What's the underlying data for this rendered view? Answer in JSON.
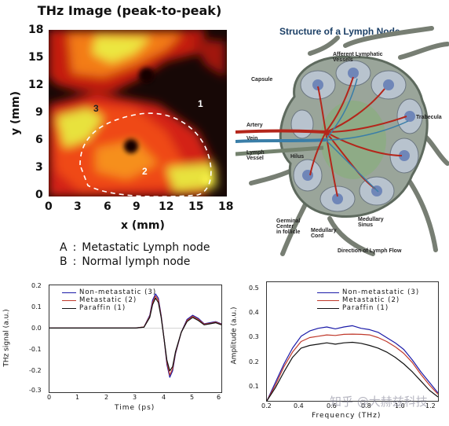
{
  "thz_image": {
    "title": "THz Image (peak-to-peak)",
    "xlabel": "x (mm)",
    "ylabel": "y (mm)",
    "xticks": [
      "0",
      "3",
      "6",
      "9",
      "12",
      "15",
      "18"
    ],
    "yticks": [
      "18",
      "15",
      "12",
      "9",
      "6",
      "3",
      "0"
    ],
    "region_labels": [
      "1",
      "2",
      "3"
    ]
  },
  "legend_ab": {
    "a": "A : Metastatic Lymph node",
    "b": "B : Normal lymph node"
  },
  "lymph_node": {
    "title": "Structure of a Lymph Node",
    "labels": {
      "afferent": "Afferent Lymphatic\nVessels",
      "capsule": "Capsule",
      "trabecula": "Trabecula",
      "artery": "Artery",
      "vein": "Vein",
      "lymph_vessel": "Lymph\nVessel",
      "hilus": "Hilus",
      "germinal": "Germinal\nCenter\nin follicle",
      "medullary_cord": "Medullary\nCord",
      "medullary_sinus": "Medullary\nSinus",
      "direction": "Direction of Lymph Flow"
    }
  },
  "chart_data": [
    {
      "type": "line",
      "xlabel": "Time (ps)",
      "ylabel": "THz signal (a.u.)",
      "xlim": [
        0,
        6
      ],
      "ylim": [
        -0.3,
        0.2
      ],
      "xticks": [
        "0",
        "1",
        "2",
        "3",
        "4",
        "5",
        "6"
      ],
      "yticks": [
        "0.2",
        "0.1",
        "0.0",
        "-0.1",
        "-0.2",
        "-0.3"
      ],
      "series": [
        {
          "name": "Non-metastatic (3)",
          "color": "#1a1aa8",
          "x": [
            0,
            1,
            2,
            3,
            3.3,
            3.5,
            3.6,
            3.7,
            3.8,
            3.9,
            4.0,
            4.1,
            4.2,
            4.3,
            4.4,
            4.6,
            4.8,
            5.0,
            5.2,
            5.4,
            5.6,
            5.8,
            6.0
          ],
          "y": [
            0,
            0,
            0,
            0,
            0.005,
            0.06,
            0.13,
            0.16,
            0.14,
            0.06,
            -0.05,
            -0.17,
            -0.23,
            -0.2,
            -0.12,
            -0.02,
            0.04,
            0.06,
            0.045,
            0.02,
            0.025,
            0.03,
            0.02
          ]
        },
        {
          "name": "Metastatic (2)",
          "color": "#c0392b",
          "x": [
            0,
            1,
            2,
            3,
            3.3,
            3.5,
            3.6,
            3.7,
            3.8,
            3.9,
            4.0,
            4.1,
            4.2,
            4.3,
            4.4,
            4.6,
            4.8,
            5.0,
            5.2,
            5.4,
            5.6,
            5.8,
            6.0
          ],
          "y": [
            0,
            0,
            0,
            0,
            0.005,
            0.055,
            0.12,
            0.15,
            0.13,
            0.055,
            -0.05,
            -0.16,
            -0.22,
            -0.19,
            -0.115,
            -0.02,
            0.035,
            0.055,
            0.04,
            0.018,
            0.022,
            0.028,
            0.018
          ]
        },
        {
          "name": "Paraffin (1)",
          "color": "#111111",
          "x": [
            0,
            1,
            2,
            3,
            3.3,
            3.5,
            3.6,
            3.7,
            3.8,
            3.9,
            4.0,
            4.1,
            4.2,
            4.3,
            4.4,
            4.6,
            4.8,
            5.0,
            5.2,
            5.4,
            5.6,
            5.8,
            6.0
          ],
          "y": [
            0,
            0,
            0,
            0,
            0.004,
            0.05,
            0.11,
            0.14,
            0.12,
            0.05,
            -0.05,
            -0.15,
            -0.2,
            -0.18,
            -0.11,
            -0.02,
            0.03,
            0.05,
            0.035,
            0.015,
            0.02,
            0.025,
            0.015
          ]
        }
      ]
    },
    {
      "type": "line",
      "xlabel": "Frequency (THz)",
      "ylabel": "Amplitude (a.u.)",
      "xlim": [
        0.2,
        1.2
      ],
      "ylim": [
        0.07,
        0.52
      ],
      "xticks": [
        "0.2",
        "0.4",
        "0.6",
        "0.8",
        "1.0",
        "1.2"
      ],
      "yticks": [
        "0.5",
        "0.4",
        "0.3",
        "0.2",
        "0.1"
      ],
      "series": [
        {
          "name": "Non-metastatic (3)",
          "color": "#1a1aa8",
          "x": [
            0.2,
            0.25,
            0.3,
            0.35,
            0.4,
            0.45,
            0.5,
            0.55,
            0.6,
            0.65,
            0.7,
            0.75,
            0.8,
            0.85,
            0.9,
            0.95,
            1.0,
            1.05,
            1.1,
            1.15,
            1.2
          ],
          "y": [
            0.07,
            0.14,
            0.21,
            0.27,
            0.315,
            0.335,
            0.345,
            0.35,
            0.343,
            0.35,
            0.355,
            0.345,
            0.34,
            0.33,
            0.31,
            0.29,
            0.265,
            0.225,
            0.18,
            0.14,
            0.1
          ]
        },
        {
          "name": "Metastatic (2)",
          "color": "#c0392b",
          "x": [
            0.2,
            0.25,
            0.3,
            0.35,
            0.4,
            0.45,
            0.5,
            0.55,
            0.6,
            0.65,
            0.7,
            0.75,
            0.8,
            0.85,
            0.9,
            0.95,
            1.0,
            1.05,
            1.1,
            1.15,
            1.2
          ],
          "y": [
            0.07,
            0.13,
            0.2,
            0.255,
            0.295,
            0.31,
            0.315,
            0.32,
            0.318,
            0.322,
            0.323,
            0.322,
            0.32,
            0.31,
            0.295,
            0.275,
            0.25,
            0.215,
            0.17,
            0.13,
            0.095
          ]
        },
        {
          "name": "Paraffin (1)",
          "color": "#111111",
          "x": [
            0.2,
            0.25,
            0.3,
            0.35,
            0.4,
            0.45,
            0.5,
            0.55,
            0.6,
            0.65,
            0.7,
            0.75,
            0.8,
            0.85,
            0.9,
            0.95,
            1.0,
            1.05,
            1.1,
            1.15,
            1.2
          ],
          "y": [
            0.07,
            0.12,
            0.18,
            0.235,
            0.27,
            0.28,
            0.285,
            0.29,
            0.285,
            0.29,
            0.292,
            0.288,
            0.28,
            0.27,
            0.255,
            0.235,
            0.21,
            0.18,
            0.145,
            0.11,
            0.085
          ]
        }
      ]
    }
  ],
  "watermark": "知乎 @大赫兹科技",
  "colors": {
    "hot": "#e8220e",
    "warm": "#f57f17",
    "yellow": "#e9e63a",
    "dark": "#1a0a05"
  }
}
